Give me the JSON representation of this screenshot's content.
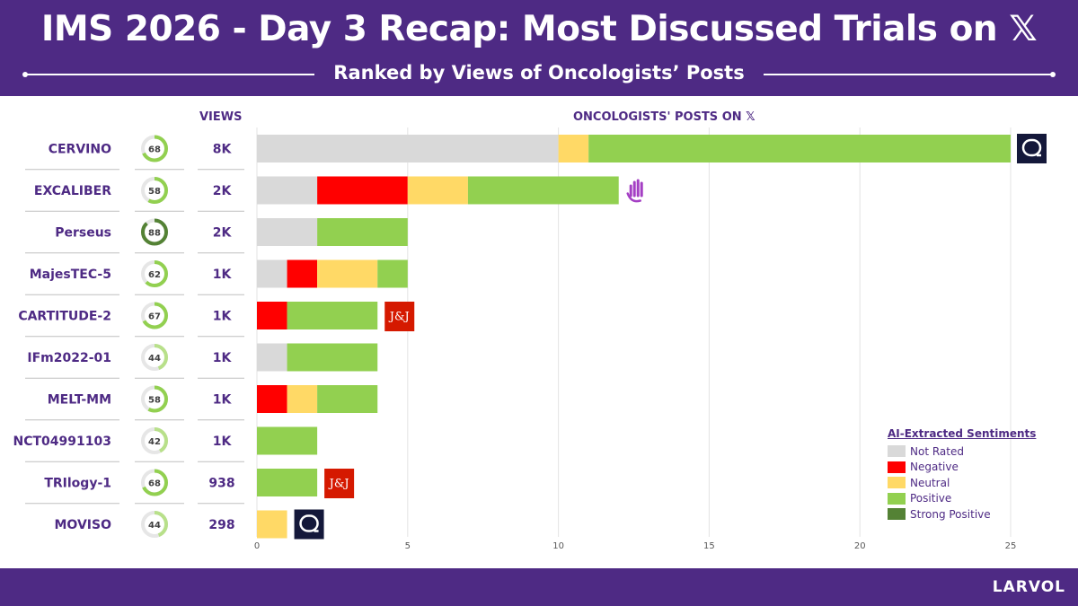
{
  "header": {
    "title": "IMS 2026 - Day 3 Recap: Most Discussed Trials on 𝕏",
    "subtitle": "Ranked by Views of Oncologists’ Posts"
  },
  "columns": {
    "views": "VIEWS",
    "posts": "ONCOLOGISTS' POSTS ON 𝕏"
  },
  "footer": {
    "brand": "LARVOL"
  },
  "colors": {
    "Not Rated": "#d9d9d9",
    "Negative": "#ff0000",
    "Neutral": "#ffd966",
    "Positive": "#92d050",
    "Strong Positive": "#548235",
    "text": "#4e2a84"
  },
  "chart_data": {
    "type": "bar",
    "orientation": "horizontal",
    "stacked": true,
    "categories": [
      "CERVINO",
      "EXCALIBER",
      "Perseus",
      "MajesTEC-5",
      "CARTITUDE-2",
      "IFm2022-01",
      "MELT-MM",
      "NCT04991103",
      "TRIlogy-1",
      "MOVISO"
    ],
    "scores": [
      68,
      58,
      88,
      62,
      67,
      44,
      58,
      42,
      68,
      44
    ],
    "views": [
      "8K",
      "2K",
      "2K",
      "1K",
      "1K",
      "1K",
      "1K",
      "1K",
      "938",
      "298"
    ],
    "series": [
      {
        "name": "Not Rated",
        "values": [
          10,
          2,
          2,
          1,
          0,
          1,
          0,
          0,
          0,
          0
        ]
      },
      {
        "name": "Negative",
        "values": [
          0,
          3,
          0,
          1,
          1,
          0,
          1,
          0,
          0,
          0
        ]
      },
      {
        "name": "Neutral",
        "values": [
          1,
          2,
          0,
          2,
          0,
          0,
          1,
          0,
          0,
          1
        ]
      },
      {
        "name": "Positive",
        "values": [
          14,
          5,
          3,
          1,
          3,
          3,
          2,
          2,
          2,
          0
        ]
      },
      {
        "name": "Strong Positive",
        "values": [
          0,
          0,
          0,
          0,
          0,
          0,
          0,
          0,
          0,
          0
        ]
      }
    ],
    "sponsor_logos": [
      "sponsor-a",
      "hand",
      "",
      "",
      "J&J",
      "",
      "",
      "",
      "J&J",
      "sponsor-a"
    ],
    "xticks": [
      0,
      5,
      10,
      15,
      20,
      25
    ],
    "xlim": [
      0,
      25
    ],
    "grid": true,
    "legend": {
      "title": "AI-Extracted Sentiments",
      "entries": [
        "Not Rated",
        "Negative",
        "Neutral",
        "Positive",
        "Strong Positive"
      ],
      "placement": "bottom-right"
    }
  }
}
